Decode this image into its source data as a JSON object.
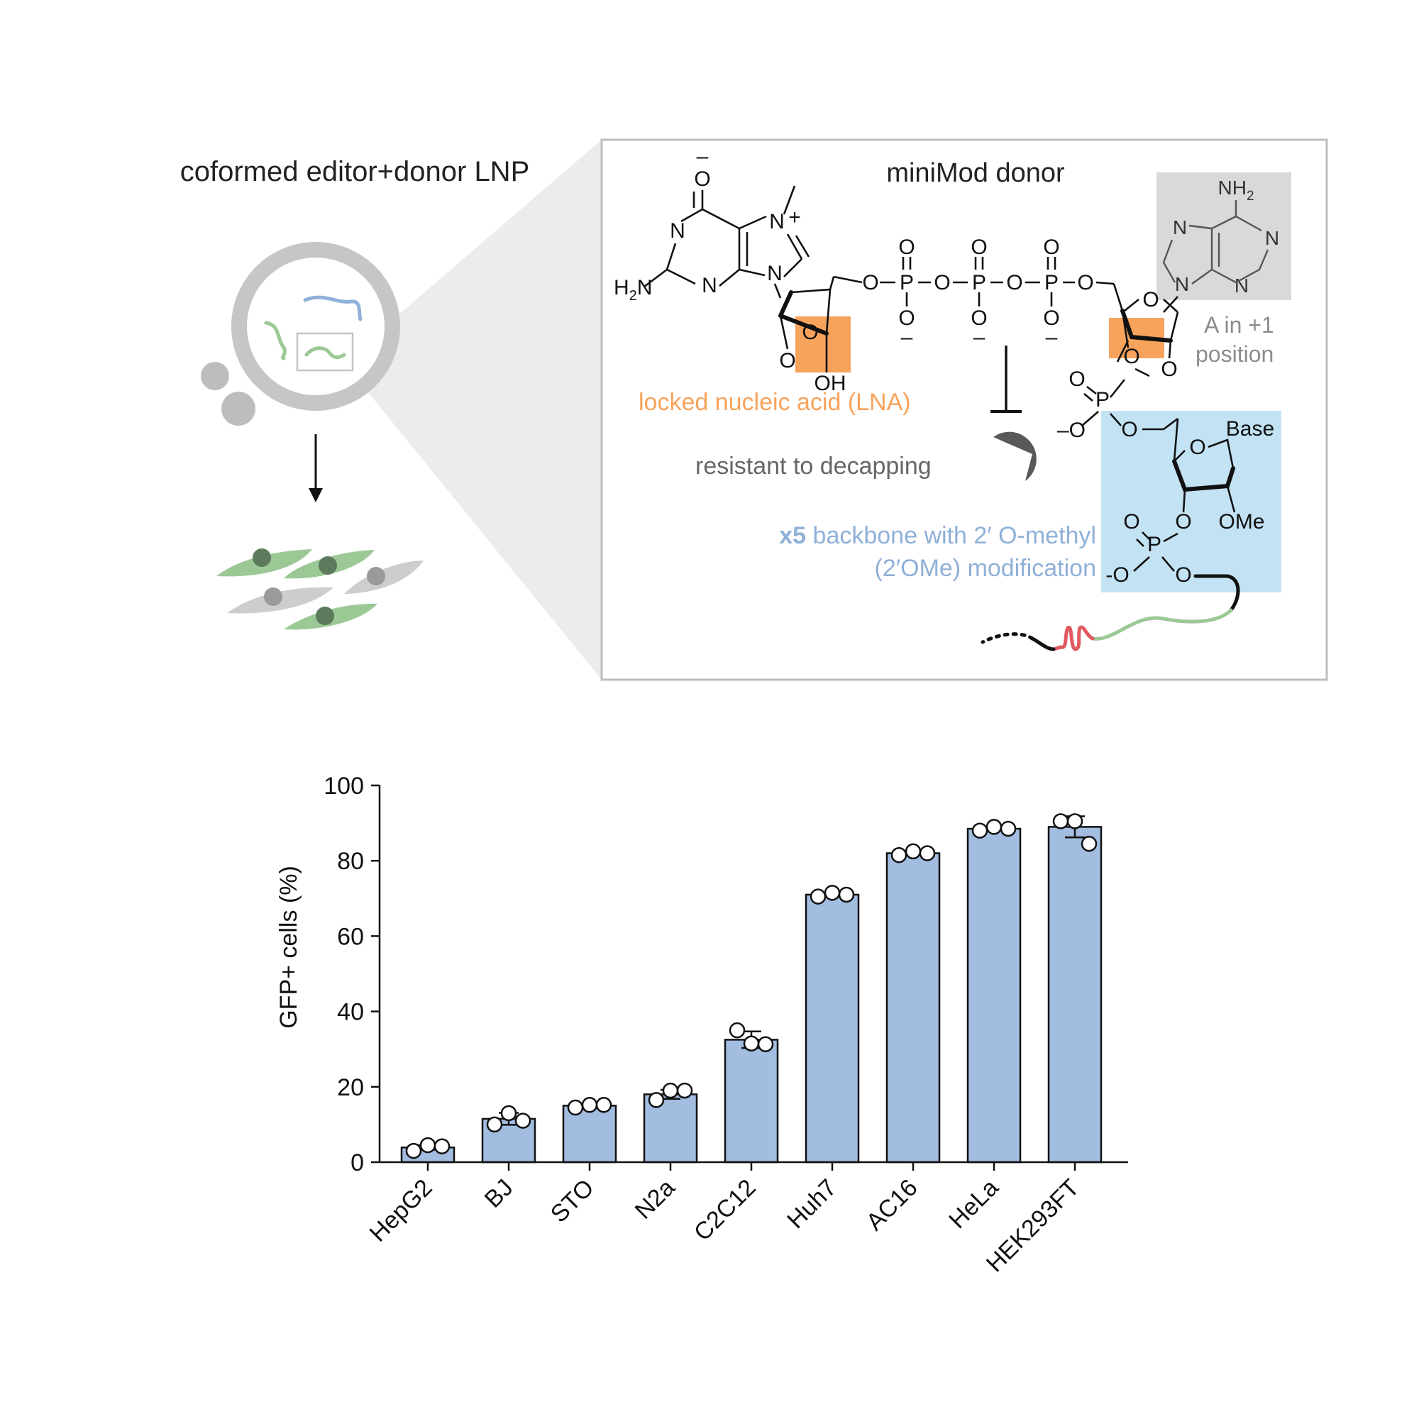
{
  "schematic": {
    "lnp_title": "coformed editor+donor LNP",
    "donor_title": "miniMod donor",
    "lna_label": "locked nucleic acid (LNA)",
    "decap_label": "resistant to decapping",
    "a_pos_line1": "A in +1",
    "a_pos_line2": "position",
    "backbone_bold": "x5",
    "backbone_line1": " backbone with 2′ O-methyl",
    "backbone_line2": "(2′OMe) modification",
    "colors": {
      "lna": "#f7a35c",
      "gray_box": "#d8d9da",
      "ome_box": "#c3e3f4",
      "label_blue": "#8fb0d8",
      "label_gray": "#666666",
      "green": "#9cc896",
      "blue_strand": "#8fb0d8",
      "red": "#e05a60"
    },
    "structure_labels": {
      "O_minus": "O",
      "N": "N",
      "N_plus": "N",
      "plus": "+",
      "H2N": "H",
      "H2N_sub": "2",
      "H2N_tail": "N",
      "O": "O",
      "P": "P",
      "OH": "OH",
      "NH2": "NH",
      "NH2_sub": "2",
      "Base": "Base",
      "OMe": "OMe",
      "minus": "–",
      "minus_O": "–O",
      "minus_O2": "-O"
    }
  },
  "chart_data": {
    "type": "bar",
    "categories": [
      "HepG2",
      "BJ",
      "STO",
      "N2a",
      "C2C12",
      "Huh7",
      "AC16",
      "HeLa",
      "HEK293FT"
    ],
    "values": [
      3.9,
      11.5,
      15.0,
      18.0,
      32.5,
      71.0,
      82.0,
      88.5,
      89.0
    ],
    "errors": [
      0.6,
      1.6,
      0.3,
      1.2,
      2.2,
      0.5,
      0.3,
      0.2,
      2.8
    ],
    "replicates": [
      [
        3.0,
        4.5,
        4.2
      ],
      [
        10.0,
        13.0,
        11.0
      ],
      [
        14.5,
        15.2,
        15.2
      ],
      [
        16.5,
        19.0,
        19.0
      ],
      [
        35.0,
        31.5,
        31.3
      ],
      [
        70.5,
        71.5,
        71.0
      ],
      [
        81.5,
        82.5,
        82.0
      ],
      [
        88.0,
        89.0,
        88.5
      ],
      [
        90.5,
        90.5,
        84.5
      ]
    ],
    "ylabel": "GFP+ cells (%)",
    "xlabel": "",
    "ylim": [
      0,
      100
    ],
    "yticks": [
      0,
      20,
      40,
      60,
      80,
      100
    ],
    "bar_color": "#a3bde1",
    "grid": false
  }
}
